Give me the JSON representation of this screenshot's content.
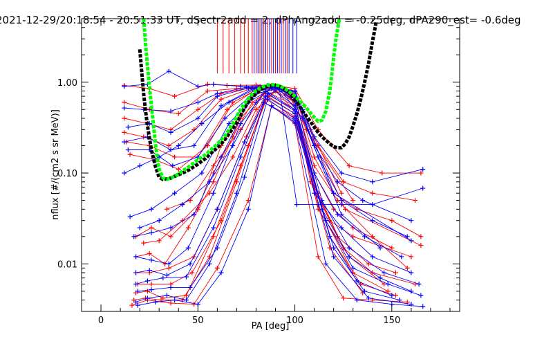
{
  "chart_data": {
    "type": "line",
    "title": "2021-12-29/20:18:54 - 20:51:33 UT, dSectr2add = 2, dPhAng2add = -0.25deg, dPA290_est=  -0.6deg",
    "xlabel": "PA [deg]",
    "ylabel": "nflux [#/(cm2 s sr MeV)]",
    "xlim": [
      -10,
      185
    ],
    "ylim": [
      0.003,
      5.0
    ],
    "yscale": "log",
    "x_ticks": [
      {
        "value": 0,
        "label": "0"
      },
      {
        "value": 50,
        "label": "50"
      },
      {
        "value": 100,
        "label": "100"
      },
      {
        "value": 150,
        "label": "150"
      }
    ],
    "y_ticks": [
      {
        "value": 0.01,
        "label": "0.01"
      },
      {
        "value": 0.1,
        "label": "0.10"
      },
      {
        "value": 1.0,
        "label": "1.00"
      }
    ],
    "colors": {
      "red": "#ff0000",
      "blue": "#0000ff",
      "black": "#000000",
      "green": "#00ff00"
    },
    "series_red": [
      {
        "x": [
          12,
          25,
          38,
          55,
          65,
          80,
          90,
          100,
          112,
          128,
          145,
          165
        ],
        "y": [
          0.92,
          0.85,
          0.7,
          0.95,
          0.92,
          0.93,
          0.92,
          0.85,
          0.3,
          0.12,
          0.1,
          0.1
        ]
      },
      {
        "x": [
          12,
          25,
          40,
          55,
          70,
          82,
          90,
          100,
          112,
          125,
          140,
          162
        ],
        "y": [
          0.6,
          0.5,
          0.45,
          0.8,
          0.85,
          0.9,
          0.9,
          0.8,
          0.2,
          0.08,
          0.06,
          0.05
        ]
      },
      {
        "x": [
          12,
          24,
          36,
          50,
          62,
          78,
          88,
          100,
          110,
          120,
          132,
          150,
          165
        ],
        "y": [
          0.4,
          0.35,
          0.3,
          0.5,
          0.75,
          0.88,
          0.9,
          0.75,
          0.15,
          0.06,
          0.04,
          0.03,
          0.02
        ]
      },
      {
        "x": [
          12,
          22,
          35,
          48,
          62,
          78,
          90,
          100,
          110,
          120,
          130,
          150
        ],
        "y": [
          0.28,
          0.25,
          0.2,
          0.3,
          0.65,
          0.86,
          0.88,
          0.7,
          0.1,
          0.04,
          0.025,
          0.015
        ]
      },
      {
        "x": [
          13,
          25,
          38,
          50,
          65,
          80,
          90,
          100,
          108,
          118,
          130,
          160
        ],
        "y": [
          0.22,
          0.2,
          0.15,
          0.15,
          0.5,
          0.84,
          0.87,
          0.6,
          0.08,
          0.03,
          0.02,
          0.012
        ]
      },
      {
        "x": [
          15,
          28,
          40,
          55,
          68,
          80,
          90,
          100,
          110,
          122,
          140,
          158
        ],
        "y": [
          0.16,
          0.14,
          0.11,
          0.2,
          0.6,
          0.82,
          0.85,
          0.65,
          0.12,
          0.05,
          0.02,
          0.009
        ]
      },
      {
        "x": [
          18,
          26,
          36,
          50,
          62,
          78,
          88,
          100,
          110,
          122,
          138,
          152
        ],
        "y": [
          0.02,
          0.025,
          0.02,
          0.04,
          0.2,
          0.7,
          0.85,
          0.6,
          0.07,
          0.02,
          0.01,
          0.008
        ]
      },
      {
        "x": [
          18,
          25,
          33,
          45,
          58,
          72,
          85,
          100,
          112,
          125,
          140,
          162
        ],
        "y": [
          0.012,
          0.013,
          0.01,
          0.025,
          0.08,
          0.4,
          0.8,
          0.55,
          0.06,
          0.015,
          0.008,
          0.006
        ]
      },
      {
        "x": [
          18,
          25,
          35,
          48,
          60,
          75,
          85,
          100,
          112,
          128,
          146
        ],
        "y": [
          0.008,
          0.008,
          0.009,
          0.012,
          0.04,
          0.25,
          0.75,
          0.5,
          0.04,
          0.012,
          0.006
        ]
      },
      {
        "x": [
          19,
          26,
          36,
          47,
          62,
          76,
          86,
          100,
          116,
          130,
          148
        ],
        "y": [
          0.006,
          0.006,
          0.006,
          0.008,
          0.03,
          0.2,
          0.7,
          0.45,
          0.03,
          0.008,
          0.005
        ]
      },
      {
        "x": [
          18,
          24,
          32,
          44,
          58,
          72,
          85,
          100,
          118,
          134,
          152
        ],
        "y": [
          0.0048,
          0.005,
          0.0042,
          0.0045,
          0.02,
          0.12,
          0.65,
          0.42,
          0.02,
          0.006,
          0.0045
        ]
      },
      {
        "x": [
          17,
          23,
          31,
          42,
          56,
          70,
          84,
          100,
          118,
          135
        ],
        "y": [
          0.004,
          0.0042,
          0.004,
          0.004,
          0.012,
          0.08,
          0.6,
          0.4,
          0.015,
          0.0048
        ]
      },
      {
        "x": [
          16,
          24,
          36,
          48,
          60,
          76,
          88,
          100,
          112,
          125,
          140,
          158
        ],
        "y": [
          0.0035,
          0.004,
          0.0037,
          0.0036,
          0.009,
          0.05,
          0.55,
          0.35,
          0.012,
          0.0042,
          0.004,
          0.0038
        ]
      },
      {
        "x": [
          22,
          30,
          42,
          56,
          68,
          80,
          90,
          104,
          126,
          165
        ],
        "y": [
          0.017,
          0.018,
          0.03,
          0.06,
          0.15,
          0.5,
          0.8,
          0.4,
          0.04,
          0.016
        ]
      },
      {
        "x": [
          34,
          46,
          58,
          72,
          84,
          96,
          106,
          130
        ],
        "y": [
          0.04,
          0.05,
          0.12,
          0.3,
          0.75,
          0.8,
          0.3,
          0.05
        ]
      },
      {
        "x": [
          58,
          68,
          78,
          88,
          98,
          108,
          124
        ],
        "y": [
          0.1,
          0.25,
          0.6,
          0.85,
          0.8,
          0.3,
          0.06
        ]
      }
    ],
    "series_blue": [
      {
        "x": [
          12,
          24,
          35,
          50,
          58,
          72,
          86,
          100,
          110,
          124,
          140,
          166
        ],
        "y": [
          0.9,
          0.95,
          1.32,
          0.9,
          0.95,
          0.9,
          0.92,
          0.8,
          0.25,
          0.1,
          0.08,
          0.11
        ]
      },
      {
        "x": [
          12,
          22,
          36,
          50,
          60,
          75,
          88,
          100,
          110,
          122,
          135,
          160
        ],
        "y": [
          0.52,
          0.5,
          0.48,
          0.6,
          0.75,
          0.88,
          0.9,
          0.78,
          0.2,
          0.08,
          0.05,
          0.03
        ]
      },
      {
        "x": [
          14,
          25,
          36,
          50,
          60,
          76,
          88,
          100,
          112,
          124,
          140,
          158
        ],
        "y": [
          0.32,
          0.35,
          0.28,
          0.4,
          0.7,
          0.86,
          0.9,
          0.72,
          0.15,
          0.05,
          0.03,
          0.02
        ]
      },
      {
        "x": [
          12,
          24,
          36,
          48,
          62,
          78,
          90,
          100,
          110,
          122,
          136,
          155
        ],
        "y": [
          0.22,
          0.25,
          0.18,
          0.2,
          0.55,
          0.84,
          0.88,
          0.68,
          0.1,
          0.035,
          0.02,
          0.012
        ]
      },
      {
        "x": [
          14,
          25,
          37,
          50,
          64,
          80,
          90,
          100,
          110,
          124,
          140,
          160
        ],
        "y": [
          0.18,
          0.18,
          0.12,
          0.15,
          0.4,
          0.8,
          0.86,
          0.62,
          0.06,
          0.025,
          0.012,
          0.008
        ]
      },
      {
        "x": [
          15,
          26,
          38,
          52,
          66,
          80,
          92,
          101,
          112,
          124,
          140,
          166
        ],
        "y": [
          0.033,
          0.04,
          0.06,
          0.1,
          0.35,
          0.75,
          0.85,
          0.045,
          0.045,
          0.045,
          0.045,
          0.068
        ]
      },
      {
        "x": [
          17,
          26,
          36,
          48,
          62,
          76,
          88,
          100,
          114,
          128,
          146,
          164
        ],
        "y": [
          0.02,
          0.022,
          0.025,
          0.035,
          0.15,
          0.6,
          0.85,
          0.55,
          0.05,
          0.015,
          0.008,
          0.006
        ]
      },
      {
        "x": [
          18,
          26,
          35,
          45,
          58,
          72,
          85,
          100,
          114,
          128,
          144,
          160
        ],
        "y": [
          0.012,
          0.011,
          0.01,
          0.015,
          0.06,
          0.35,
          0.8,
          0.5,
          0.04,
          0.012,
          0.007,
          0.005
        ]
      },
      {
        "x": [
          18,
          25,
          34,
          46,
          60,
          74,
          86,
          100,
          116,
          130,
          148,
          165
        ],
        "y": [
          0.008,
          0.0085,
          0.0075,
          0.01,
          0.04,
          0.22,
          0.75,
          0.48,
          0.03,
          0.009,
          0.006,
          0.0045
        ]
      },
      {
        "x": [
          18,
          24,
          32,
          44,
          58,
          72,
          85,
          100,
          118,
          132,
          150
        ],
        "y": [
          0.006,
          0.0065,
          0.007,
          0.0072,
          0.025,
          0.15,
          0.7,
          0.45,
          0.02,
          0.0065,
          0.0045
        ]
      },
      {
        "x": [
          19,
          26,
          36,
          46,
          60,
          74,
          86,
          100,
          120,
          136,
          154
        ],
        "y": [
          0.005,
          0.0052,
          0.0055,
          0.0055,
          0.015,
          0.09,
          0.65,
          0.4,
          0.015,
          0.005,
          0.004
        ]
      },
      {
        "x": [
          18,
          24,
          34,
          44,
          56,
          70,
          84,
          100,
          120,
          138,
          160
        ],
        "y": [
          0.0038,
          0.0042,
          0.0045,
          0.004,
          0.01,
          0.06,
          0.6,
          0.38,
          0.012,
          0.0042,
          0.0036
        ]
      },
      {
        "x": [
          19,
          28,
          38,
          50,
          62,
          76,
          88,
          100,
          116,
          132,
          150,
          166
        ],
        "y": [
          0.0035,
          0.0038,
          0.004,
          0.0036,
          0.008,
          0.04,
          0.55,
          0.36,
          0.01,
          0.004,
          0.0036,
          0.0034
        ]
      },
      {
        "x": [
          20,
          30,
          42,
          56,
          68,
          80,
          92,
          104,
          124,
          144
        ],
        "y": [
          0.025,
          0.03,
          0.045,
          0.08,
          0.2,
          0.6,
          0.85,
          0.4,
          0.035,
          0.015
        ]
      },
      {
        "x": [
          12,
          20,
          30,
          40,
          52,
          66,
          80,
          92,
          104,
          120,
          160
        ],
        "y": [
          0.1,
          0.12,
          0.15,
          0.2,
          0.35,
          0.6,
          0.85,
          0.88,
          0.5,
          0.06,
          0.018
        ]
      }
    ],
    "vertical_lines": {
      "y_bottom": 1.25,
      "y_top": 5.0,
      "red_x": [
        60,
        63,
        66,
        69,
        72,
        74,
        76,
        78,
        80,
        82,
        84,
        86,
        88,
        90,
        92,
        94,
        96
      ],
      "blue_x": [
        79,
        81,
        83,
        85,
        87,
        89,
        91,
        93,
        95,
        97,
        99,
        101
      ]
    },
    "curve_black": {
      "x": [
        20,
        21,
        22,
        23,
        24,
        26,
        28,
        30,
        32,
        34,
        36,
        38,
        40,
        42,
        44,
        46,
        48,
        50,
        52,
        54,
        56,
        58,
        60,
        62,
        64,
        66,
        68,
        70,
        72,
        74,
        76,
        78,
        80,
        82,
        84,
        86,
        88,
        90,
        92,
        94,
        96,
        98,
        100,
        102,
        104,
        106,
        108,
        110,
        112,
        114,
        116,
        118,
        120,
        122,
        124,
        126,
        128,
        130,
        132,
        134,
        136,
        138,
        140,
        141,
        142
      ],
      "y": [
        2.3,
        1.3,
        0.75,
        0.48,
        0.33,
        0.18,
        0.12,
        0.09,
        0.085,
        0.086,
        0.088,
        0.092,
        0.096,
        0.1,
        0.105,
        0.11,
        0.118,
        0.125,
        0.135,
        0.145,
        0.16,
        0.175,
        0.19,
        0.21,
        0.235,
        0.27,
        0.31,
        0.36,
        0.43,
        0.52,
        0.6,
        0.68,
        0.75,
        0.82,
        0.87,
        0.9,
        0.92,
        0.92,
        0.9,
        0.86,
        0.8,
        0.72,
        0.64,
        0.56,
        0.48,
        0.42,
        0.37,
        0.32,
        0.28,
        0.25,
        0.23,
        0.21,
        0.195,
        0.19,
        0.19,
        0.21,
        0.25,
        0.33,
        0.45,
        0.65,
        1.0,
        1.6,
        2.8,
        3.6,
        4.7
      ]
    },
    "curve_green": {
      "x": [
        22,
        23,
        24,
        25,
        26,
        27,
        28,
        29,
        30,
        32,
        34,
        36,
        38,
        40,
        42,
        44,
        46,
        48,
        50,
        52,
        54,
        56,
        58,
        60,
        62,
        64,
        66,
        68,
        70,
        72,
        74,
        76,
        78,
        80,
        82,
        84,
        86,
        88,
        90,
        92,
        94,
        96,
        98,
        100,
        102,
        104,
        106,
        108,
        110,
        112,
        114,
        116,
        118,
        119,
        120,
        121,
        122,
        123
      ],
      "y": [
        5.0,
        2.6,
        1.5,
        0.9,
        0.55,
        0.35,
        0.22,
        0.15,
        0.11,
        0.088,
        0.085,
        0.088,
        0.092,
        0.098,
        0.105,
        0.112,
        0.12,
        0.13,
        0.14,
        0.15,
        0.16,
        0.175,
        0.19,
        0.21,
        0.23,
        0.26,
        0.3,
        0.35,
        0.42,
        0.5,
        0.58,
        0.66,
        0.74,
        0.81,
        0.86,
        0.9,
        0.93,
        0.94,
        0.93,
        0.91,
        0.87,
        0.82,
        0.76,
        0.7,
        0.64,
        0.58,
        0.52,
        0.46,
        0.41,
        0.37,
        0.38,
        0.48,
        0.8,
        1.2,
        1.9,
        2.8,
        3.8,
        5.0
      ]
    }
  }
}
